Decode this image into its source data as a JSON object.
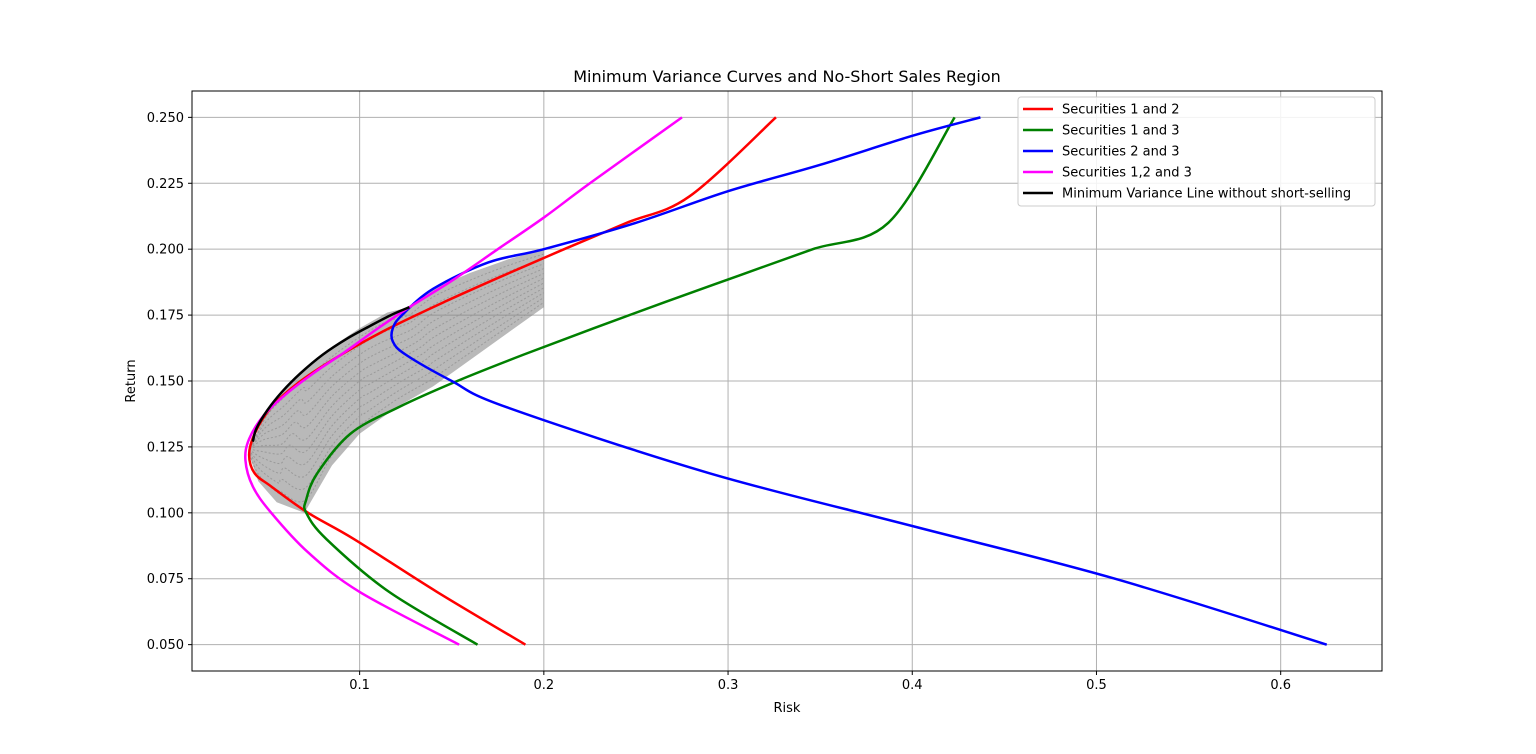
{
  "chart_data": {
    "type": "line",
    "title": "Minimum Variance Curves and No-Short Sales Region",
    "xlabel": "Risk",
    "ylabel": "Return",
    "xlim": [
      0.009,
      0.655
    ],
    "ylim": [
      0.04,
      0.26
    ],
    "x_ticks": [
      0.1,
      0.2,
      0.3,
      0.4,
      0.5,
      0.6
    ],
    "x_tick_labels": [
      "0.1",
      "0.2",
      "0.3",
      "0.4",
      "0.5",
      "0.6"
    ],
    "y_ticks": [
      0.05,
      0.075,
      0.1,
      0.125,
      0.15,
      0.175,
      0.2,
      0.225,
      0.25
    ],
    "y_tick_labels": [
      "0.050",
      "0.075",
      "0.100",
      "0.125",
      "0.150",
      "0.175",
      "0.200",
      "0.225",
      "0.250"
    ],
    "grid": true,
    "legend_position": "top-right",
    "series": [
      {
        "name": "Securities 1 and 2",
        "color": "#ff0000",
        "x": [
          0.19,
          0.142,
          0.097,
          0.072,
          0.052,
          0.043,
          0.04,
          0.043,
          0.052,
          0.068,
          0.09,
          0.116,
          0.146,
          0.178,
          0.211,
          0.245,
          0.279,
          0.326
        ],
        "y": [
          0.05,
          0.07,
          0.09,
          0.1,
          0.11,
          0.115,
          0.122,
          0.13,
          0.14,
          0.15,
          0.16,
          0.17,
          0.18,
          0.19,
          0.2,
          0.21,
          0.22,
          0.25
        ]
      },
      {
        "name": "Securities 1 and 3",
        "color": "#008000",
        "x": [
          0.164,
          0.116,
          0.082,
          0.071,
          0.071,
          0.077,
          0.095,
          0.121,
          0.153,
          0.189,
          0.227,
          0.266,
          0.306,
          0.346,
          0.387,
          0.423
        ],
        "y": [
          0.05,
          0.07,
          0.09,
          0.1,
          0.105,
          0.115,
          0.13,
          0.14,
          0.15,
          0.16,
          0.17,
          0.18,
          0.19,
          0.2,
          0.21,
          0.25
        ]
      },
      {
        "name": "Securities 2 and 3",
        "color": "#0000ff",
        "x": [
          0.625,
          0.51,
          0.4,
          0.29,
          0.18,
          0.15,
          0.125,
          0.118,
          0.118,
          0.123,
          0.14,
          0.17,
          0.2,
          0.25,
          0.3,
          0.35,
          0.4,
          0.437
        ],
        "y": [
          0.05,
          0.075,
          0.095,
          0.115,
          0.14,
          0.15,
          0.16,
          0.165,
          0.17,
          0.175,
          0.185,
          0.195,
          0.2,
          0.21,
          0.222,
          0.232,
          0.243,
          0.25
        ]
      },
      {
        "name": "Securities 1,2 and 3",
        "color": "#ff00ff",
        "x": [
          0.154,
          0.1,
          0.072,
          0.052,
          0.042,
          0.038,
          0.04,
          0.048,
          0.06,
          0.075,
          0.092,
          0.11,
          0.127,
          0.15,
          0.175,
          0.2,
          0.225,
          0.275
        ],
        "y": [
          0.05,
          0.07,
          0.085,
          0.1,
          0.11,
          0.12,
          0.128,
          0.137,
          0.145,
          0.153,
          0.161,
          0.17,
          0.178,
          0.188,
          0.2,
          0.212,
          0.225,
          0.25
        ]
      },
      {
        "name": "Minimum Variance Line without short-selling",
        "color": "#000000",
        "x": [
          0.042,
          0.044,
          0.05,
          0.058,
          0.068,
          0.08,
          0.093,
          0.106,
          0.117,
          0.127
        ],
        "y": [
          0.127,
          0.132,
          0.139,
          0.146,
          0.153,
          0.16,
          0.166,
          0.171,
          0.175,
          0.178
        ]
      }
    ],
    "feasible_region": {
      "color": "#808080",
      "upper_boundary": {
        "x": [
          0.042,
          0.05,
          0.06,
          0.072,
          0.085,
          0.1,
          0.115,
          0.127,
          0.14,
          0.16,
          0.18,
          0.2
        ],
        "y": [
          0.127,
          0.139,
          0.148,
          0.156,
          0.163,
          0.17,
          0.176,
          0.178,
          0.185,
          0.191,
          0.196,
          0.2
        ]
      },
      "lower_boundary": {
        "x": [
          0.04,
          0.045,
          0.055,
          0.07,
          0.085,
          0.1,
          0.12,
          0.14,
          0.16,
          0.18,
          0.2
        ],
        "y": [
          0.122,
          0.112,
          0.104,
          0.1,
          0.118,
          0.13,
          0.14,
          0.148,
          0.158,
          0.168,
          0.178
        ]
      }
    }
  }
}
